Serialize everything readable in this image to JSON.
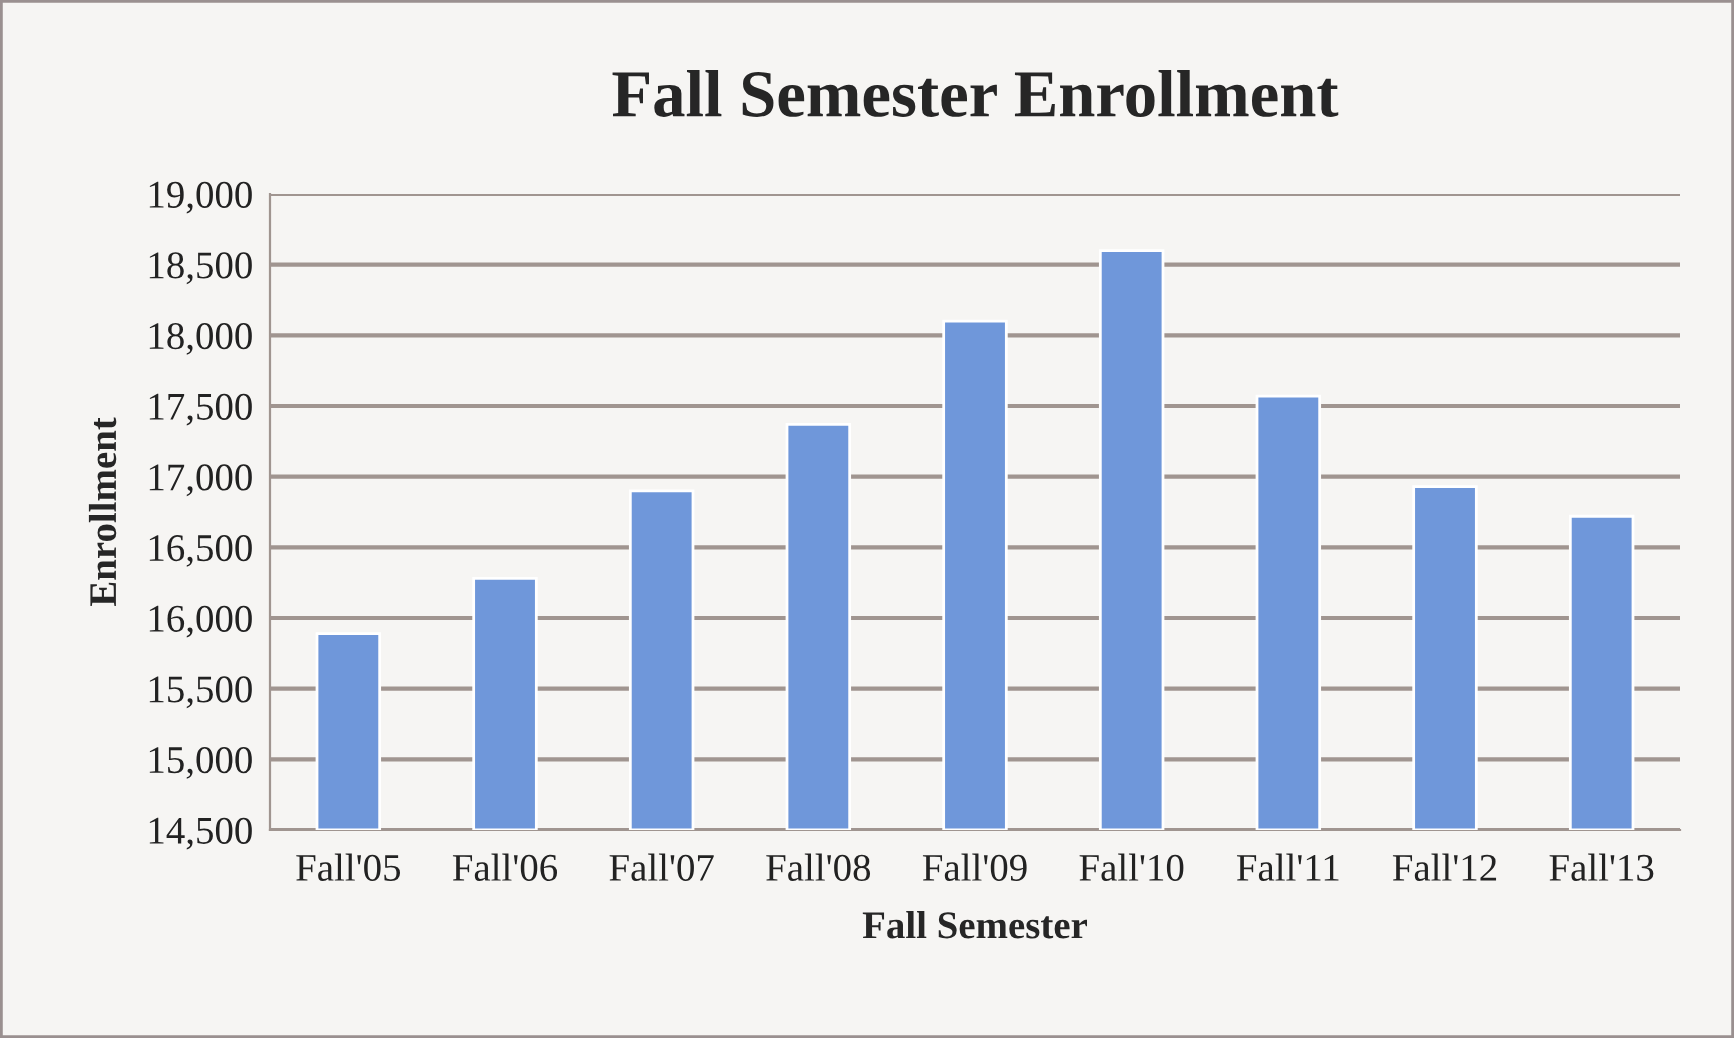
{
  "chart_data": {
    "type": "bar",
    "title": "Fall Semester Enrollment",
    "xlabel": "Fall Semester",
    "ylabel": "Enrollment",
    "categories": [
      "Fall'05",
      "Fall'06",
      "Fall'07",
      "Fall'08",
      "Fall'09",
      "Fall'10",
      "Fall'11",
      "Fall'12",
      "Fall'13"
    ],
    "values": [
      15890,
      16280,
      16900,
      17370,
      18100,
      18600,
      17570,
      16930,
      16720
    ],
    "color": "#6f97da",
    "ylim": [
      14500,
      19000
    ],
    "yticks": [
      {
        "value": 14500,
        "label": "14,500"
      },
      {
        "value": 15000,
        "label": "15,000"
      },
      {
        "value": 15500,
        "label": "15,500"
      },
      {
        "value": 16000,
        "label": "16,000"
      },
      {
        "value": 16500,
        "label": "16,500"
      },
      {
        "value": 17000,
        "label": "17,000"
      },
      {
        "value": 17500,
        "label": "17,500"
      },
      {
        "value": 18000,
        "label": "18,000"
      },
      {
        "value": 18500,
        "label": "18,500"
      },
      {
        "value": 19000,
        "label": "19,000"
      }
    ],
    "grid": "y",
    "legend": false
  }
}
